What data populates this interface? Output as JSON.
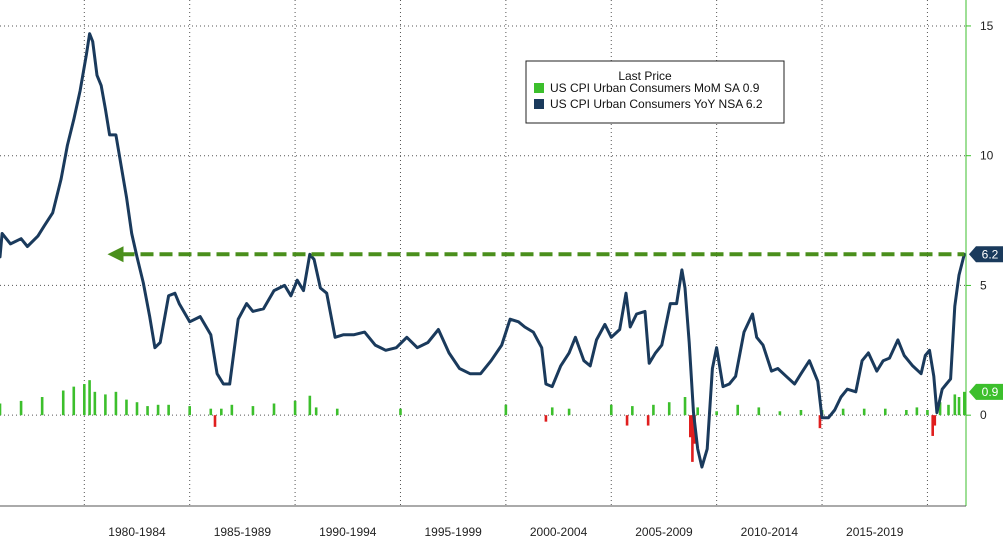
{
  "chart_data": {
    "type": "line",
    "title": "",
    "xlabel": "",
    "ylabel": "",
    "x_range": [
      1976.0,
      2021.83
    ],
    "ylim": [
      -3.5,
      16.0
    ],
    "y_ticks": [
      {
        "value": 15,
        "label": "15"
      },
      {
        "value": 10,
        "label": "10"
      },
      {
        "value": 5,
        "label": "5"
      },
      {
        "value": 0,
        "label": "0"
      }
    ],
    "x_period_labels": [
      {
        "label": "1980-1984",
        "from": 1980,
        "to": 1985
      },
      {
        "label": "1985-1989",
        "from": 1985,
        "to": 1990
      },
      {
        "label": "1990-1994",
        "from": 1990,
        "to": 1995
      },
      {
        "label": "1995-1999",
        "from": 1995,
        "to": 2000
      },
      {
        "label": "2000-2004",
        "from": 2000,
        "to": 2005
      },
      {
        "label": "2005-2009",
        "from": 2005,
        "to": 2010
      },
      {
        "label": "2010-2014",
        "from": 2010,
        "to": 2015
      },
      {
        "label": "2015-2019",
        "from": 2015,
        "to": 2020
      }
    ],
    "grid": true,
    "legend": {
      "title": "Last Price",
      "placement": "top-center",
      "entries": [
        {
          "label": "US CPI Urban Consumers MoM SA  0.9",
          "color": "#3cbf2c"
        },
        {
          "label": "US CPI Urban Consumers YoY NSA 6.2",
          "color": "#1a3a5c"
        }
      ]
    },
    "badges": [
      {
        "series": "yoy",
        "value": 6.2,
        "label": "6.2",
        "color": "#1a3a5c"
      },
      {
        "series": "mom",
        "value": 0.9,
        "label": "0.9",
        "color": "#3cbf2c"
      }
    ],
    "reference_line": {
      "y": 6.2,
      "from_x": 1981.1,
      "to_x": 2021.75,
      "color": "#4a8f1c",
      "style": "dashed-arrow"
    },
    "series": [
      {
        "name": "US CPI Urban Consumers YoY NSA",
        "type": "line",
        "color": "#1a3a5c",
        "x": [
          1976.0,
          1976.1,
          1976.5,
          1977.0,
          1977.3,
          1977.8,
          1978.1,
          1978.5,
          1978.9,
          1979.2,
          1979.5,
          1979.8,
          1980.1,
          1980.25,
          1980.4,
          1980.6,
          1980.8,
          1981.0,
          1981.2,
          1981.5,
          1981.75,
          1982.0,
          1982.25,
          1982.5,
          1982.8,
          1983.1,
          1983.35,
          1983.6,
          1984.0,
          1984.3,
          1984.5,
          1985.0,
          1985.5,
          1986.0,
          1986.3,
          1986.6,
          1986.9,
          1987.3,
          1987.7,
          1988.0,
          1988.5,
          1989.0,
          1989.5,
          1989.8,
          1990.1,
          1990.4,
          1990.7,
          1990.9,
          1991.2,
          1991.5,
          1991.9,
          1992.3,
          1992.8,
          1993.3,
          1993.8,
          1994.3,
          1994.8,
          1995.3,
          1995.8,
          1996.3,
          1996.8,
          1997.3,
          1997.8,
          1998.3,
          1998.8,
          1999.3,
          1999.8,
          2000.2,
          2000.6,
          2000.9,
          2001.3,
          2001.7,
          2001.9,
          2002.2,
          2002.6,
          2003.0,
          2003.3,
          2003.7,
          2004.0,
          2004.3,
          2004.7,
          2005.0,
          2005.4,
          2005.7,
          2005.9,
          2006.2,
          2006.6,
          2006.8,
          2007.1,
          2007.4,
          2007.8,
          2008.1,
          2008.35,
          2008.5,
          2008.7,
          2008.9,
          2009.1,
          2009.3,
          2009.55,
          2009.8,
          2010.0,
          2010.3,
          2010.6,
          2010.9,
          2011.3,
          2011.7,
          2011.9,
          2012.2,
          2012.6,
          2012.9,
          2013.3,
          2013.7,
          2014.0,
          2014.4,
          2014.8,
          2015.0,
          2015.3,
          2015.6,
          2015.9,
          2016.2,
          2016.6,
          2016.9,
          2017.2,
          2017.6,
          2017.9,
          2018.2,
          2018.6,
          2018.9,
          2019.3,
          2019.7,
          2019.9,
          2020.1,
          2020.3,
          2020.45,
          2020.7,
          2020.9,
          2021.1,
          2021.3,
          2021.5,
          2021.75
        ],
        "values": [
          6.1,
          7.0,
          6.6,
          6.8,
          6.5,
          6.9,
          7.3,
          7.8,
          9.1,
          10.4,
          11.4,
          12.5,
          13.9,
          14.7,
          14.4,
          13.1,
          12.7,
          11.8,
          10.8,
          10.8,
          9.6,
          8.4,
          7.0,
          6.1,
          5.1,
          3.8,
          2.6,
          2.8,
          4.6,
          4.7,
          4.3,
          3.6,
          3.8,
          3.1,
          1.6,
          1.2,
          1.2,
          3.7,
          4.3,
          4.0,
          4.1,
          4.8,
          5.0,
          4.6,
          5.2,
          4.8,
          6.2,
          6.0,
          4.9,
          4.7,
          3.0,
          3.1,
          3.1,
          3.2,
          2.7,
          2.5,
          2.6,
          3.0,
          2.6,
          2.8,
          3.3,
          2.4,
          1.8,
          1.6,
          1.6,
          2.1,
          2.7,
          3.7,
          3.6,
          3.4,
          3.2,
          2.6,
          1.2,
          1.1,
          1.9,
          2.4,
          3.0,
          2.1,
          1.9,
          2.9,
          3.5,
          3.0,
          3.3,
          4.7,
          3.4,
          3.9,
          4.0,
          2.0,
          2.4,
          2.7,
          4.3,
          4.3,
          5.6,
          4.9,
          2.8,
          0.1,
          -1.3,
          -2.0,
          -1.3,
          1.8,
          2.6,
          1.1,
          1.2,
          1.5,
          3.2,
          3.9,
          3.0,
          2.7,
          1.7,
          1.8,
          1.5,
          1.2,
          1.6,
          2.1,
          1.3,
          -0.1,
          -0.1,
          0.2,
          0.7,
          1.0,
          0.9,
          2.1,
          2.4,
          1.7,
          2.1,
          2.2,
          2.9,
          2.3,
          1.9,
          1.6,
          2.3,
          2.5,
          1.5,
          0.1,
          1.0,
          1.2,
          1.4,
          4.2,
          5.4,
          6.2
        ]
      },
      {
        "name": "US CPI Urban Consumers MoM SA",
        "type": "bar",
        "color_positive": "#3cbf2c",
        "color_negative": "#e01e1e",
        "x": [
          1976.0,
          1977.0,
          1978.0,
          1979.0,
          1979.5,
          1980.0,
          1980.25,
          1980.5,
          1981.0,
          1981.5,
          1982.0,
          1982.5,
          1983.0,
          1983.5,
          1984.0,
          1985.0,
          1986.0,
          1986.2,
          1986.5,
          1987.0,
          1988.0,
          1989.0,
          1990.0,
          1990.7,
          1991.0,
          1992.0,
          1995.0,
          2000.0,
          2001.9,
          2002.2,
          2003.0,
          2005.0,
          2005.75,
          2006.0,
          2006.75,
          2007.0,
          2007.75,
          2008.5,
          2008.75,
          2008.85,
          2008.95,
          2009.1,
          2010.0,
          2011.0,
          2012.0,
          2013.0,
          2014.0,
          2014.9,
          2015.0,
          2016.0,
          2017.0,
          2018.0,
          2019.0,
          2019.5,
          2020.0,
          2020.25,
          2020.35,
          2020.6,
          2021.0,
          2021.3,
          2021.5,
          2021.75
        ],
        "values": [
          0.45,
          0.55,
          0.7,
          0.95,
          1.1,
          1.2,
          1.35,
          0.9,
          0.8,
          0.9,
          0.6,
          0.5,
          0.35,
          0.4,
          0.4,
          0.35,
          0.25,
          -0.45,
          0.25,
          0.4,
          0.35,
          0.45,
          0.55,
          0.75,
          0.3,
          0.25,
          0.25,
          0.4,
          -0.25,
          0.3,
          0.25,
          0.4,
          -0.4,
          0.35,
          -0.4,
          0.4,
          0.5,
          0.7,
          -0.85,
          -1.8,
          -1.1,
          0.3,
          0.15,
          0.4,
          0.3,
          0.15,
          0.2,
          -0.5,
          0.2,
          0.25,
          0.25,
          0.25,
          0.2,
          0.3,
          0.2,
          -0.8,
          -0.4,
          0.5,
          0.4,
          0.8,
          0.7,
          0.9
        ]
      }
    ]
  }
}
